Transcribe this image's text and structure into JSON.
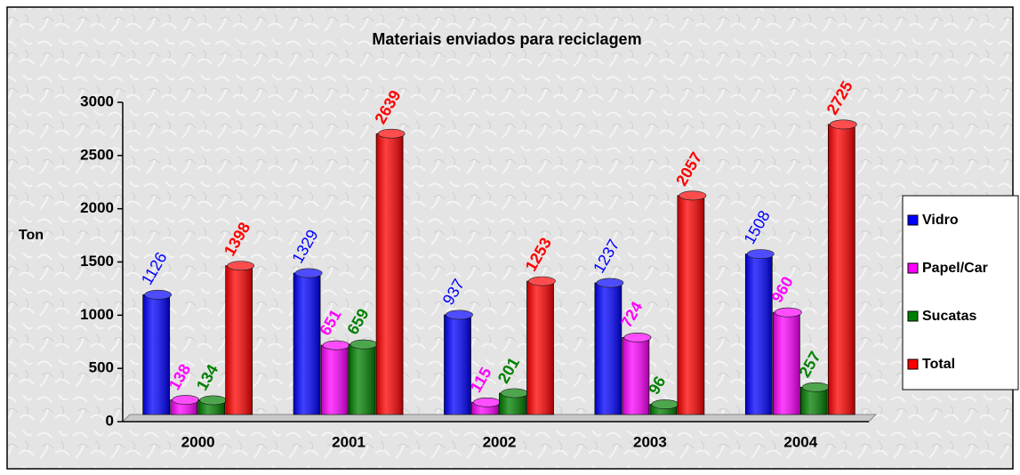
{
  "chart_data": {
    "type": "bar",
    "title": "Materiais enviados para reciclagem",
    "y_label": "Ton",
    "categories": [
      "2000",
      "2001",
      "2002",
      "2003",
      "2004"
    ],
    "series": [
      {
        "name": "Vidro",
        "color": "#0000ff",
        "values": [
          1126,
          1329,
          937,
          1237,
          1508
        ]
      },
      {
        "name": "Papel/Car",
        "color": "#ff00ff",
        "values": [
          138,
          651,
          115,
          724,
          960
        ]
      },
      {
        "name": "Sucatas",
        "color": "#008000",
        "values": [
          134,
          659,
          201,
          96,
          257
        ]
      },
      {
        "name": "Total",
        "color": "#ff0000",
        "values": [
          1398,
          2639,
          1253,
          2057,
          2725
        ]
      }
    ],
    "ylim": [
      0,
      3000
    ],
    "yticks": [
      0,
      500,
      1000,
      1500,
      2000,
      2500,
      3000
    ],
    "grid": false,
    "legend": "right"
  }
}
